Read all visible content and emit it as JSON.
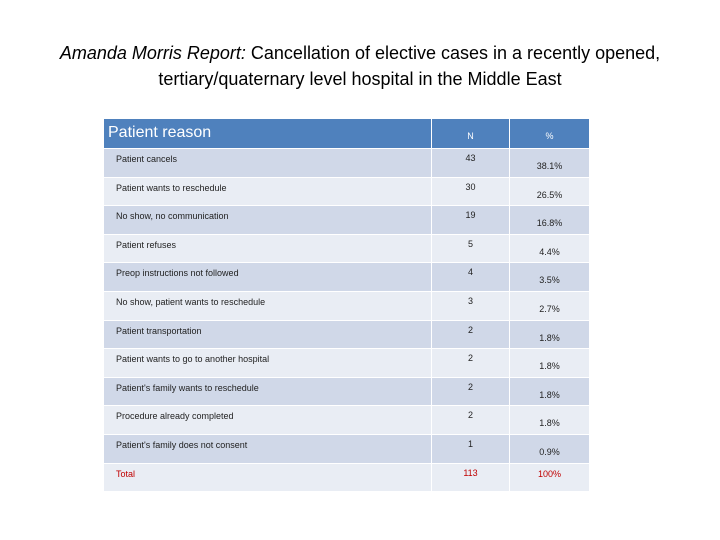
{
  "title": {
    "italic": "Amanda Morris Report:",
    "line1": " Cancellation of elective cases in a recently opened,",
    "line2": "tertiary/quaternary level hospital in the Middle East"
  },
  "table": {
    "headers": [
      "Patient reason",
      "N",
      "%"
    ],
    "rows": [
      [
        "Patient cancels",
        "43",
        "38.1%"
      ],
      [
        "Patient wants to reschedule",
        "30",
        "26.5%"
      ],
      [
        "No show, no communication",
        "19",
        "16.8%"
      ],
      [
        "Patient refuses",
        "5",
        "4.4%"
      ],
      [
        "Preop instructions not followed",
        "4",
        "3.5%"
      ],
      [
        "No show, patient wants to reschedule",
        "3",
        "2.7%"
      ],
      [
        "Patient transportation",
        "2",
        "1.8%"
      ],
      [
        "Patient wants to go to another hospital",
        "2",
        "1.8%"
      ],
      [
        "Patient's family wants to reschedule",
        "2",
        "1.8%"
      ],
      [
        "Procedure already completed",
        "2",
        "1.8%"
      ],
      [
        "Patient's family does not consent",
        "1",
        "0.9%"
      ]
    ],
    "total": [
      "Total",
      "113",
      "100%"
    ]
  }
}
